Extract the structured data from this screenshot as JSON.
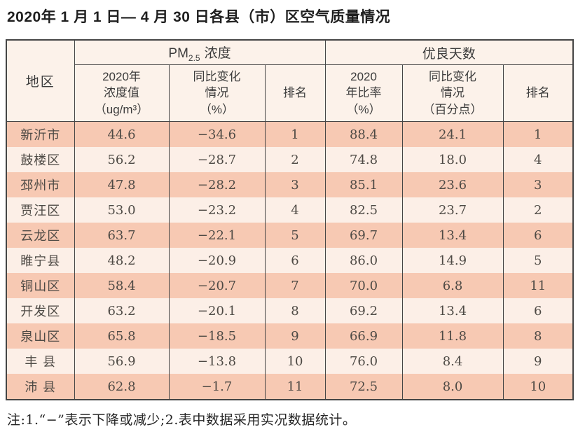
{
  "page": {
    "title": "2020年 1 月 1 日— 4 月 30 日各县（市）区空气质量情况",
    "footnote": "注:1.“−”表示下降或减少;2.表中数据采用实况数据统计。"
  },
  "colors": {
    "row_salmon": "#f7c9b3",
    "row_light": "#fcefe7",
    "header_bg": "#fcf2ea",
    "border": "#454545"
  },
  "table": {
    "region_header": "地区",
    "pm_group": {
      "prefix": "PM",
      "subscript": "2.5",
      "suffix": "浓度"
    },
    "good_group": "优良天数",
    "sub_headers": {
      "pm_value": "2020年\n浓度值\n（ug/m³）",
      "pm_change": "同比变化\n情况\n（%）",
      "pm_rank": "排名",
      "good_rate": "2020\n年比率\n（%）",
      "good_change": "同比变化\n情况\n（百分点）",
      "good_rank": "排名"
    },
    "rows": [
      {
        "region": "新沂市",
        "pm_value": "44.6",
        "pm_change": "−34.6",
        "pm_rank": "1",
        "good_rate": "88.4",
        "good_change": "24.1",
        "good_rank": "1"
      },
      {
        "region": "鼓楼区",
        "pm_value": "56.2",
        "pm_change": "−28.7",
        "pm_rank": "2",
        "good_rate": "74.8",
        "good_change": "18.0",
        "good_rank": "4"
      },
      {
        "region": "邳州市",
        "pm_value": "47.8",
        "pm_change": "−28.2",
        "pm_rank": "3",
        "good_rate": "85.1",
        "good_change": "23.6",
        "good_rank": "3"
      },
      {
        "region": "贾汪区",
        "pm_value": "53.0",
        "pm_change": "−23.2",
        "pm_rank": "4",
        "good_rate": "82.5",
        "good_change": "23.7",
        "good_rank": "2"
      },
      {
        "region": "云龙区",
        "pm_value": "63.7",
        "pm_change": "−22.1",
        "pm_rank": "5",
        "good_rate": "69.7",
        "good_change": "13.4",
        "good_rank": "6"
      },
      {
        "region": "睢宁县",
        "pm_value": "48.2",
        "pm_change": "−20.9",
        "pm_rank": "6",
        "good_rate": "86.0",
        "good_change": "14.9",
        "good_rank": "5"
      },
      {
        "region": "铜山区",
        "pm_value": "58.4",
        "pm_change": "−20.7",
        "pm_rank": "7",
        "good_rate": "70.0",
        "good_change": "6.8",
        "good_rank": "11"
      },
      {
        "region": "开发区",
        "pm_value": "63.2",
        "pm_change": "−20.1",
        "pm_rank": "8",
        "good_rate": "69.2",
        "good_change": "13.4",
        "good_rank": "6"
      },
      {
        "region": "泉山区",
        "pm_value": "65.8",
        "pm_change": "−18.5",
        "pm_rank": "9",
        "good_rate": "66.9",
        "good_change": "11.8",
        "good_rank": "8"
      },
      {
        "region": "丰 县",
        "pm_value": "56.9",
        "pm_change": "−13.8",
        "pm_rank": "10",
        "good_rate": "76.0",
        "good_change": "8.4",
        "good_rank": "9"
      },
      {
        "region": "沛 县",
        "pm_value": "62.8",
        "pm_change": "−1.7",
        "pm_rank": "11",
        "good_rate": "72.5",
        "good_change": "8.0",
        "good_rank": "10"
      }
    ]
  }
}
